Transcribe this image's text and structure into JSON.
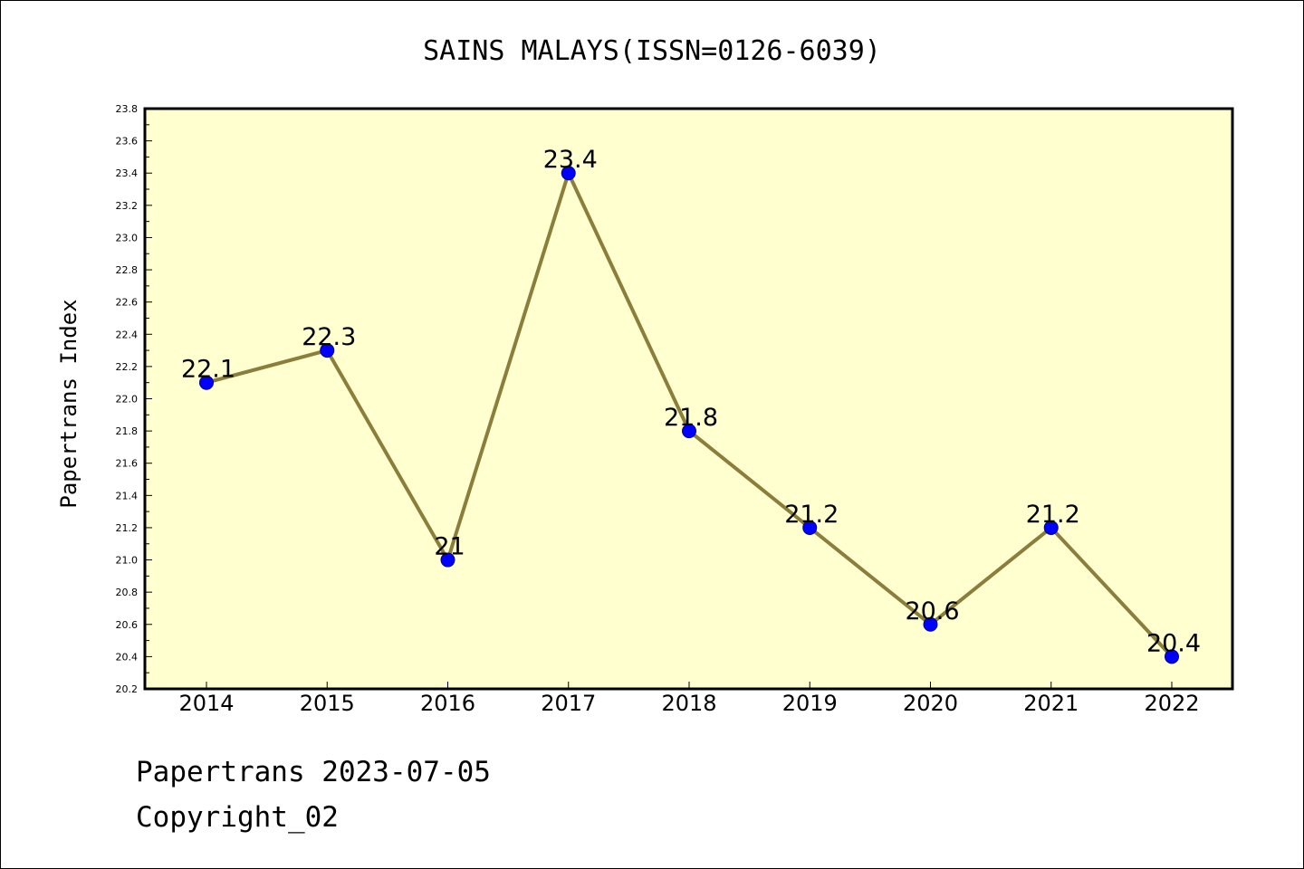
{
  "chart_data": {
    "type": "line",
    "title": "SAINS MALAYS(ISSN=0126-6039)",
    "xlabel": "",
    "ylabel": "Papertrans Index",
    "categories": [
      "2014",
      "2015",
      "2016",
      "2017",
      "2018",
      "2019",
      "2020",
      "2021",
      "2022"
    ],
    "values": [
      22.1,
      22.3,
      21,
      23.4,
      21.8,
      21.2,
      20.6,
      21.2,
      20.4
    ],
    "data_labels": [
      "22.1",
      "22.3",
      "21",
      "23.4",
      "21.8",
      "21.2",
      "20.6",
      "21.2",
      "20.4"
    ],
    "ylim": [
      20.2,
      23.8
    ],
    "yticks": [
      "20.2",
      "20.4",
      "20.6",
      "20.8",
      "21.0",
      "21.2",
      "21.4",
      "21.6",
      "21.8",
      "22.0",
      "22.2",
      "22.4",
      "22.6",
      "22.8",
      "23.0",
      "23.2",
      "23.4",
      "23.6",
      "23.8"
    ],
    "grid": false,
    "legend": "none",
    "colors": {
      "plot_background": "#ffffd0",
      "line": "#8b7d3a",
      "marker": "#0000ff"
    }
  },
  "footer": {
    "date_line": "Papertrans 2023-07-05",
    "copyright": "Copyright_02"
  }
}
